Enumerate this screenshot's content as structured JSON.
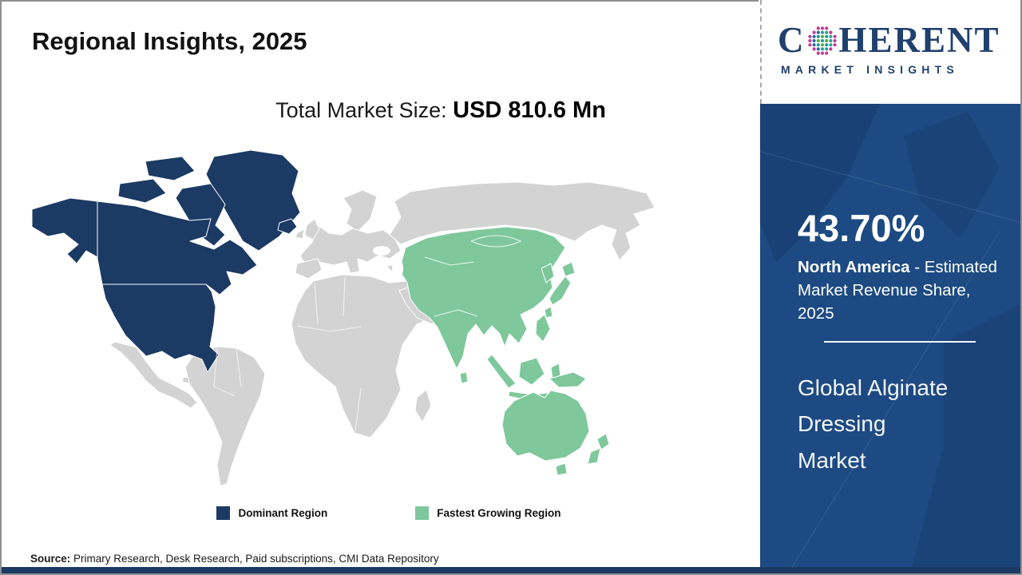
{
  "header": {
    "title": "Regional Insights, 2025",
    "market_size_label": "Total Market Size: ",
    "market_size_value": "USD 810.6 Mn"
  },
  "logo": {
    "brand_left": "C",
    "brand_right": "HERENT",
    "tagline": "MARKET INSIGHTS",
    "brand_color": "#20406e"
  },
  "legend": {
    "items": [
      {
        "label": "Dominant Region",
        "color": "#1b3a64"
      },
      {
        "label": "Fastest Growing Region",
        "color": "#7ec89c"
      }
    ]
  },
  "sidebar": {
    "share_value": "43.70%",
    "share_region": "North America",
    "share_desc": " - Estimated\nMarket Revenue Share,\n2025",
    "market_name": "Global Alginate\nDressing\nMarket",
    "background_color": "#1d4a82"
  },
  "source": {
    "label": "Source:",
    "text": " Primary Research, Desk Research, Paid subscriptions, CMI Data Repository"
  },
  "chart_data": {
    "type": "choropleth_map",
    "title": "Regional Insights, 2025",
    "total_market_size": "USD 810.6 Mn",
    "total_market_size_usd_mn": 810.6,
    "legend": [
      "Dominant Region",
      "Fastest Growing Region"
    ],
    "legend_position": "bottom-center",
    "regions": [
      {
        "name": "North America",
        "classification": "Dominant Region",
        "estimated_market_revenue_share_2025_pct": 43.7,
        "map_color": "#1b3a64",
        "areas_highlighted": [
          "United States",
          "Canada",
          "Alaska",
          "Greenland",
          "Iceland"
        ]
      },
      {
        "name": "Asia Pacific",
        "classification": "Fastest Growing Region",
        "map_color": "#7ec89c",
        "areas_highlighted": [
          "China",
          "Mongolia",
          "Central Asia",
          "India",
          "South Asia",
          "Southeast Asia",
          "Indonesia",
          "Philippines",
          "Japan",
          "South Korea",
          "Papua New Guinea",
          "Australia",
          "New Zealand"
        ]
      },
      {
        "name": "Rest of World",
        "classification": "Not highlighted",
        "map_color": "#d3d3d3"
      }
    ]
  }
}
